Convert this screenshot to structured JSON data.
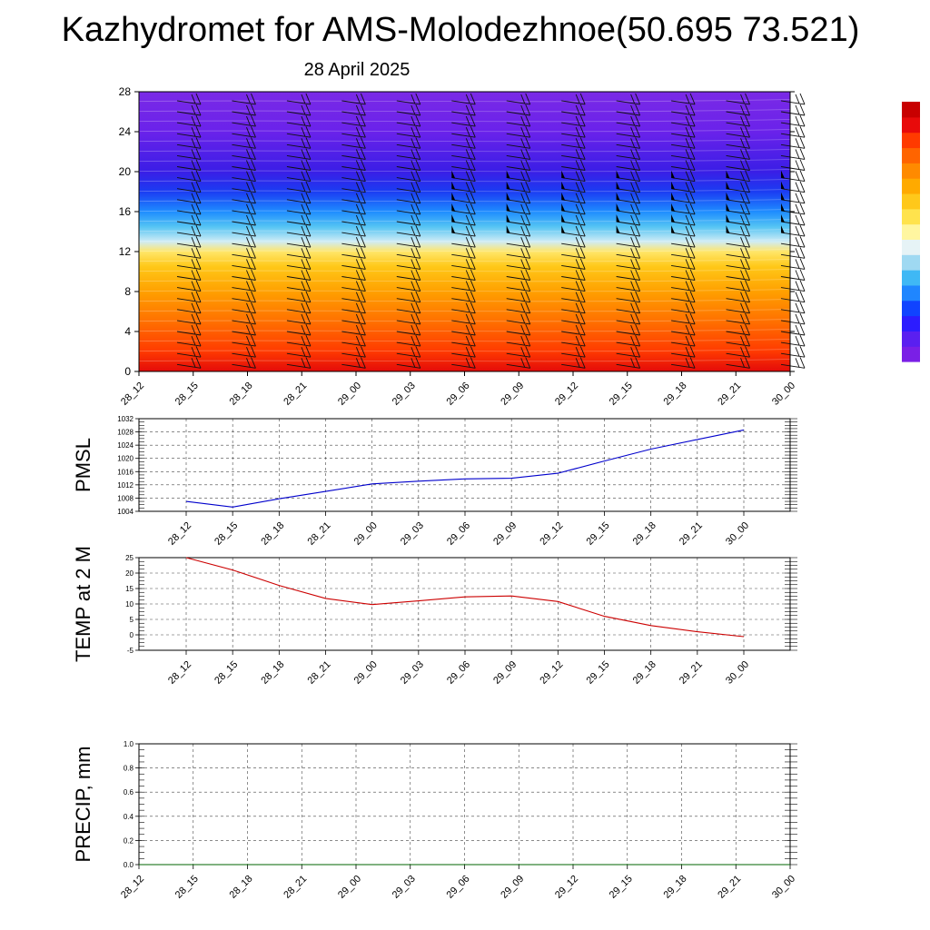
{
  "title": "Kazhydromet for AMS-Molodezhnoe(50.695 73.521)",
  "date": "28 April 2025",
  "colorbar": {
    "colors": [
      "#7a1fe6",
      "#5a1ff0",
      "#2c1cff",
      "#1043ff",
      "#1f86ff",
      "#3fb8f5",
      "#9fd9f2",
      "#e6f3f6",
      "#fff6a0",
      "#ffe34d",
      "#ffc81a",
      "#ffaa00",
      "#ff8a00",
      "#ff6400",
      "#ff3a00",
      "#e80a0a",
      "#c80000"
    ]
  },
  "chart_data": [
    {
      "type": "heatmap",
      "title": "",
      "xlabel": "",
      "ylabel": "",
      "x_ticks": [
        "28_12",
        "28_15",
        "28_18",
        "28_21",
        "29_00",
        "29_03",
        "29_06",
        "29_09",
        "29_12",
        "29_15",
        "29_18",
        "29_21",
        "30_00"
      ],
      "y_ticks": [
        0,
        4,
        8,
        12,
        16,
        20,
        24,
        28
      ],
      "ylim": [
        0,
        28
      ],
      "profile": [
        {
          "level": 0,
          "color": "#e30a0a"
        },
        {
          "level": 2,
          "color": "#ff3a00"
        },
        {
          "level": 5,
          "color": "#ff7000"
        },
        {
          "level": 8,
          "color": "#ffa000"
        },
        {
          "level": 10.5,
          "color": "#ffc818"
        },
        {
          "level": 12,
          "color": "#ffe66a"
        },
        {
          "level": 13,
          "color": "#cfecf5"
        },
        {
          "level": 14.5,
          "color": "#54c4f4"
        },
        {
          "level": 16,
          "color": "#1e8cff"
        },
        {
          "level": 18,
          "color": "#1b3cf2"
        },
        {
          "level": 20,
          "color": "#3a1ee6"
        },
        {
          "level": 24,
          "color": "#6a22ea"
        },
        {
          "level": 28,
          "color": "#7a2ae6"
        }
      ],
      "wind_barbs": true
    },
    {
      "type": "line",
      "title": "",
      "ylabel": "PMSL",
      "x": [
        "28_12",
        "28_15",
        "28_18",
        "28_21",
        "29_00",
        "29_03",
        "29_06",
        "29_09",
        "29_12",
        "29_15",
        "29_18",
        "29_21",
        "30_00"
      ],
      "y_ticks": [
        1004,
        1008,
        1012,
        1016,
        1020,
        1024,
        1028,
        1032
      ],
      "ylim": [
        1004,
        1032
      ],
      "series": [
        {
          "color": "#0000cc",
          "values": [
            1007.0,
            1005.3,
            1007.8,
            1010.0,
            1012.3,
            1013.1,
            1013.8,
            1014.0,
            1015.5,
            1019.2,
            1022.8,
            1025.7,
            1028.6
          ]
        }
      ]
    },
    {
      "type": "line",
      "title": "",
      "ylabel": "TEMP at 2 M",
      "x": [
        "28_12",
        "28_15",
        "28_18",
        "28_21",
        "29_00",
        "29_03",
        "29_06",
        "29_09",
        "29_12",
        "29_15",
        "29_18",
        "29_21",
        "30_00"
      ],
      "y_ticks": [
        -5,
        0,
        5,
        10,
        15,
        20,
        25
      ],
      "ylim": [
        -5,
        25
      ],
      "series": [
        {
          "color": "#cc0000",
          "values": [
            25.0,
            21.0,
            16.0,
            11.8,
            9.8,
            11.0,
            12.3,
            12.6,
            10.8,
            6.0,
            3.0,
            1.0,
            -0.6
          ]
        }
      ]
    },
    {
      "type": "line",
      "title": "",
      "ylabel": "PRECIP, mm",
      "x": [
        "28_12",
        "28_15",
        "28_18",
        "28_21",
        "29_00",
        "29_03",
        "29_06",
        "29_09",
        "29_12",
        "29_15",
        "29_18",
        "29_21",
        "30_00"
      ],
      "y_ticks": [
        0.0,
        0.2,
        0.4,
        0.6,
        0.8,
        1.0
      ],
      "ylim": [
        0.0,
        1.0
      ],
      "series": [
        {
          "color": "#006600",
          "values": [
            0,
            0,
            0,
            0,
            0,
            0,
            0,
            0,
            0,
            0,
            0,
            0,
            0
          ]
        }
      ]
    }
  ]
}
